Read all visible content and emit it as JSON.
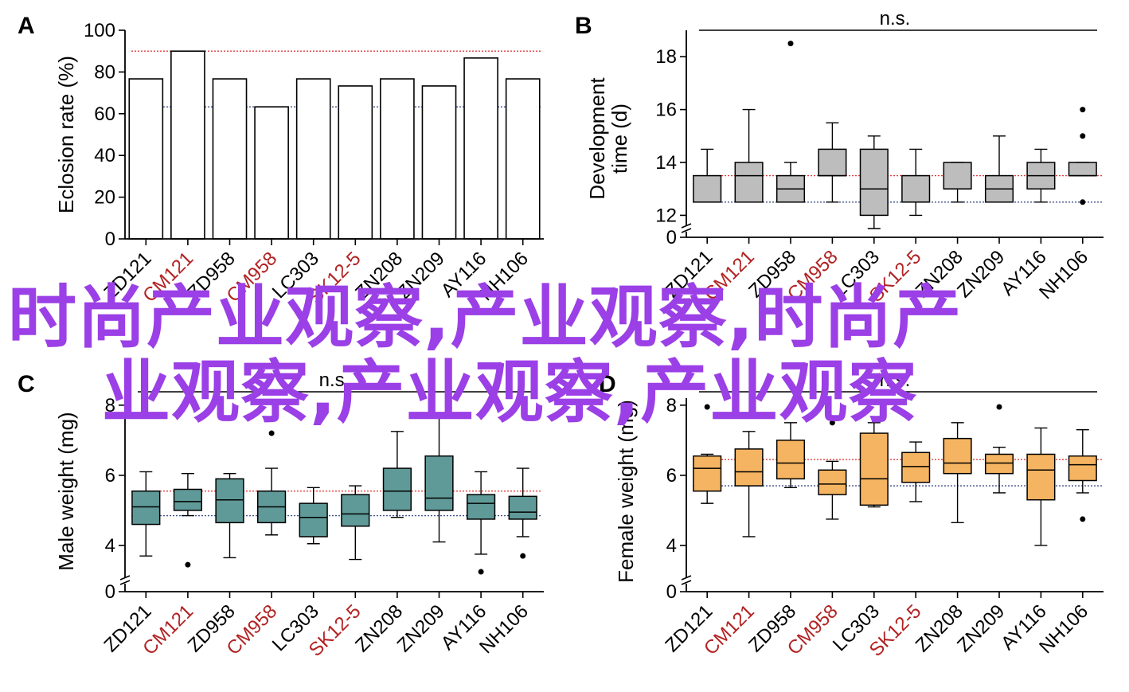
{
  "colors": {
    "accent_red": "#b22222",
    "ref_red": "#e23b3b",
    "ref_blue": "#3b4f8a",
    "box_grey": "#bdbdbd",
    "box_teal": "#5f9a98",
    "box_orange": "#f5b461",
    "watermark": "#9b3fe6"
  },
  "watermark": {
    "line1": "时尚产业观察,产业观察,时尚产",
    "line2": "业观察,产业观察,产业观察"
  },
  "chart_data": [
    {
      "panel": "A",
      "type": "bar",
      "ylabel": "Eclosion rate (%)",
      "ylim": [
        0,
        100
      ],
      "yticks": [
        0,
        20,
        40,
        60,
        80,
        100
      ],
      "categories": [
        "ZD121",
        "CM121",
        "ZD958",
        "CM958",
        "LC303",
        "SK12-5",
        "ZN208",
        "ZN209",
        "AY116",
        "NH106"
      ],
      "highlighted_categories": [
        "CM121",
        "CM958",
        "SK12-5"
      ],
      "values": [
        76.7,
        90,
        76.7,
        63.3,
        76.7,
        73.3,
        76.7,
        73.3,
        86.7,
        76.7
      ],
      "ref_lines": [
        {
          "color": "red",
          "y": 90
        },
        {
          "color": "blue",
          "y": 63.3
        }
      ]
    },
    {
      "panel": "B",
      "type": "box",
      "ylabel_lines": [
        "Development",
        "time (d)"
      ],
      "annotation": "n.s.",
      "axis_break": true,
      "ylim": [
        11.5,
        19
      ],
      "yticks": [
        0,
        12,
        14,
        16,
        18
      ],
      "categories": [
        "ZD121",
        "CM121",
        "ZD958",
        "CM958",
        "LC303",
        "SK12-5",
        "ZN208",
        "ZN209",
        "AY116",
        "NH106"
      ],
      "highlighted_categories": [
        "CM121",
        "CM958",
        "SK12-5"
      ],
      "boxes": [
        {
          "whislo": 12.5,
          "q1": 12.5,
          "med": 12.5,
          "q3": 13.5,
          "whishi": 14.5,
          "outliers": []
        },
        {
          "whislo": 12.5,
          "q1": 12.5,
          "med": 13.5,
          "q3": 14.0,
          "whishi": 16.0,
          "outliers": []
        },
        {
          "whislo": 12.5,
          "q1": 12.5,
          "med": 13.0,
          "q3": 13.5,
          "whishi": 14.0,
          "outliers": [
            18.5
          ]
        },
        {
          "whislo": 12.5,
          "q1": 13.5,
          "med": 13.5,
          "q3": 14.5,
          "whishi": 15.5,
          "outliers": []
        },
        {
          "whislo": 11.5,
          "q1": 12.0,
          "med": 13.0,
          "q3": 14.5,
          "whishi": 15.0,
          "outliers": []
        },
        {
          "whislo": 12.0,
          "q1": 12.5,
          "med": 12.5,
          "q3": 13.5,
          "whishi": 14.5,
          "outliers": []
        },
        {
          "whislo": 12.5,
          "q1": 13.0,
          "med": 13.0,
          "q3": 14.0,
          "whishi": 14.0,
          "outliers": []
        },
        {
          "whislo": 12.5,
          "q1": 12.5,
          "med": 13.0,
          "q3": 13.5,
          "whishi": 15.0,
          "outliers": []
        },
        {
          "whislo": 12.5,
          "q1": 13.0,
          "med": 13.5,
          "q3": 14.0,
          "whishi": 14.5,
          "outliers": []
        },
        {
          "whislo": 13.5,
          "q1": 13.5,
          "med": 13.5,
          "q3": 14.0,
          "whishi": 14.0,
          "outliers": [
            12.5,
            15.0,
            16.0
          ]
        }
      ],
      "ref_lines": [
        {
          "color": "red",
          "y": 13.5
        },
        {
          "color": "blue",
          "y": 12.5
        }
      ]
    },
    {
      "panel": "C",
      "type": "box",
      "ylabel": "Male weight (mg)",
      "annotation": "n.s.",
      "axis_break": true,
      "ylim": [
        3,
        8.2
      ],
      "yticks": [
        0,
        4,
        6,
        8
      ],
      "categories": [
        "ZD121",
        "CM121",
        "ZD958",
        "CM958",
        "LC303",
        "SK12-5",
        "ZN208",
        "ZN209",
        "AY116",
        "NH106"
      ],
      "highlighted_categories": [
        "CM121",
        "CM958",
        "SK12-5"
      ],
      "boxes": [
        {
          "whislo": 3.7,
          "q1": 4.6,
          "med": 5.1,
          "q3": 5.55,
          "whishi": 6.1,
          "outliers": []
        },
        {
          "whislo": 4.85,
          "q1": 5.0,
          "med": 5.25,
          "q3": 5.6,
          "whishi": 6.05,
          "outliers": [
            3.45
          ]
        },
        {
          "whislo": 3.65,
          "q1": 4.65,
          "med": 5.3,
          "q3": 5.9,
          "whishi": 6.05,
          "outliers": []
        },
        {
          "whislo": 4.3,
          "q1": 4.65,
          "med": 5.1,
          "q3": 5.55,
          "whishi": 6.2,
          "outliers": [
            7.2
          ]
        },
        {
          "whislo": 4.05,
          "q1": 4.25,
          "med": 4.8,
          "q3": 5.2,
          "whishi": 5.65,
          "outliers": []
        },
        {
          "whislo": 3.6,
          "q1": 4.55,
          "med": 4.9,
          "q3": 5.45,
          "whishi": 5.7,
          "outliers": []
        },
        {
          "whislo": 4.8,
          "q1": 5.0,
          "med": 5.55,
          "q3": 6.2,
          "whishi": 7.25,
          "outliers": []
        },
        {
          "whislo": 4.1,
          "q1": 5.0,
          "med": 5.35,
          "q3": 6.55,
          "whishi": 7.75,
          "outliers": []
        },
        {
          "whislo": 3.75,
          "q1": 4.75,
          "med": 5.2,
          "q3": 5.45,
          "whishi": 6.1,
          "outliers": [
            3.25
          ]
        },
        {
          "whislo": 4.25,
          "q1": 4.75,
          "med": 4.95,
          "q3": 5.4,
          "whishi": 6.2,
          "outliers": [
            3.7
          ]
        }
      ],
      "ref_lines": [
        {
          "color": "red",
          "y": 5.55
        },
        {
          "color": "blue",
          "y": 4.85
        }
      ]
    },
    {
      "panel": "D",
      "type": "box",
      "ylabel": "Female weight (mg)",
      "annotation": "n.s.",
      "axis_break": true,
      "ylim": [
        3,
        8.2
      ],
      "yticks": [
        0,
        4,
        6,
        8
      ],
      "categories": [
        "ZD121",
        "CM121",
        "ZD958",
        "CM958",
        "LC303",
        "SK12-5",
        "ZN208",
        "ZN209",
        "AY116",
        "NH106"
      ],
      "highlighted_categories": [
        "CM121",
        "CM958",
        "SK12-5"
      ],
      "boxes": [
        {
          "whislo": 5.2,
          "q1": 5.55,
          "med": 6.2,
          "q3": 6.55,
          "whishi": 6.6,
          "outliers": [
            7.95
          ]
        },
        {
          "whislo": 4.25,
          "q1": 5.7,
          "med": 6.1,
          "q3": 6.75,
          "whishi": 7.25,
          "outliers": []
        },
        {
          "whislo": 5.65,
          "q1": 5.9,
          "med": 6.35,
          "q3": 7.0,
          "whishi": 7.5,
          "outliers": []
        },
        {
          "whislo": 4.75,
          "q1": 5.45,
          "med": 5.75,
          "q3": 6.15,
          "whishi": 6.4,
          "outliers": [
            7.5
          ]
        },
        {
          "whislo": 5.1,
          "q1": 5.15,
          "med": 5.9,
          "q3": 7.2,
          "whishi": 7.5,
          "outliers": []
        },
        {
          "whislo": 5.25,
          "q1": 5.8,
          "med": 6.25,
          "q3": 6.65,
          "whishi": 6.95,
          "outliers": []
        },
        {
          "whislo": 4.65,
          "q1": 6.05,
          "med": 6.35,
          "q3": 7.05,
          "whishi": 7.5,
          "outliers": []
        },
        {
          "whislo": 5.5,
          "q1": 6.05,
          "med": 6.35,
          "q3": 6.6,
          "whishi": 6.8,
          "outliers": [
            7.95
          ]
        },
        {
          "whislo": 4.0,
          "q1": 5.3,
          "med": 6.15,
          "q3": 6.6,
          "whishi": 7.35,
          "outliers": []
        },
        {
          "whislo": 5.5,
          "q1": 5.85,
          "med": 6.3,
          "q3": 6.55,
          "whishi": 7.3,
          "outliers": [
            4.75
          ]
        }
      ],
      "ref_lines": [
        {
          "color": "red",
          "y": 6.45
        },
        {
          "color": "blue",
          "y": 5.7
        }
      ]
    }
  ]
}
